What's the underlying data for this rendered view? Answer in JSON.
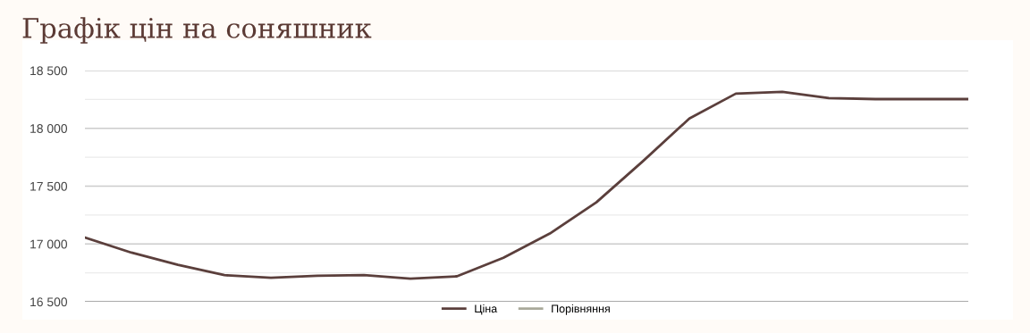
{
  "chart_data": {
    "type": "line",
    "title": "Графік цін на соняшник",
    "categories": [
      null,
      null,
      null,
      null,
      null,
      null,
      null,
      null,
      null,
      null,
      null,
      null,
      null,
      null,
      null,
      null,
      null,
      null,
      null,
      null
    ],
    "series": [
      {
        "name": "Ціна",
        "color": "#5b3f3c",
        "values": [
          17055,
          16925,
          16820,
          16730,
          16708,
          16725,
          16730,
          16700,
          16720,
          16880,
          17090,
          17360,
          17715,
          18085,
          18300,
          18315,
          18262,
          18253,
          18253,
          18253
        ]
      },
      {
        "name": "Порівняння",
        "color": "#a9a99a",
        "values": [
          null,
          null,
          null,
          null,
          null,
          null,
          null,
          null,
          null,
          null,
          null,
          null,
          null,
          null,
          null,
          null,
          null,
          null,
          null,
          null
        ]
      }
    ],
    "ylim": [
      16500,
      18500
    ],
    "yticks": [
      {
        "value": 16500,
        "label": "16 500"
      },
      {
        "value": 16750,
        "label": null
      },
      {
        "value": 17000,
        "label": "17 000"
      },
      {
        "value": 17250,
        "label": null
      },
      {
        "value": 17500,
        "label": "17 500"
      },
      {
        "value": 17750,
        "label": null
      },
      {
        "value": 18000,
        "label": "18 000"
      },
      {
        "value": 18250,
        "label": null
      },
      {
        "value": 18500,
        "label": "18 500"
      }
    ],
    "grid": "y",
    "legend": "bottom",
    "marker": "none",
    "line_style": "solid"
  }
}
